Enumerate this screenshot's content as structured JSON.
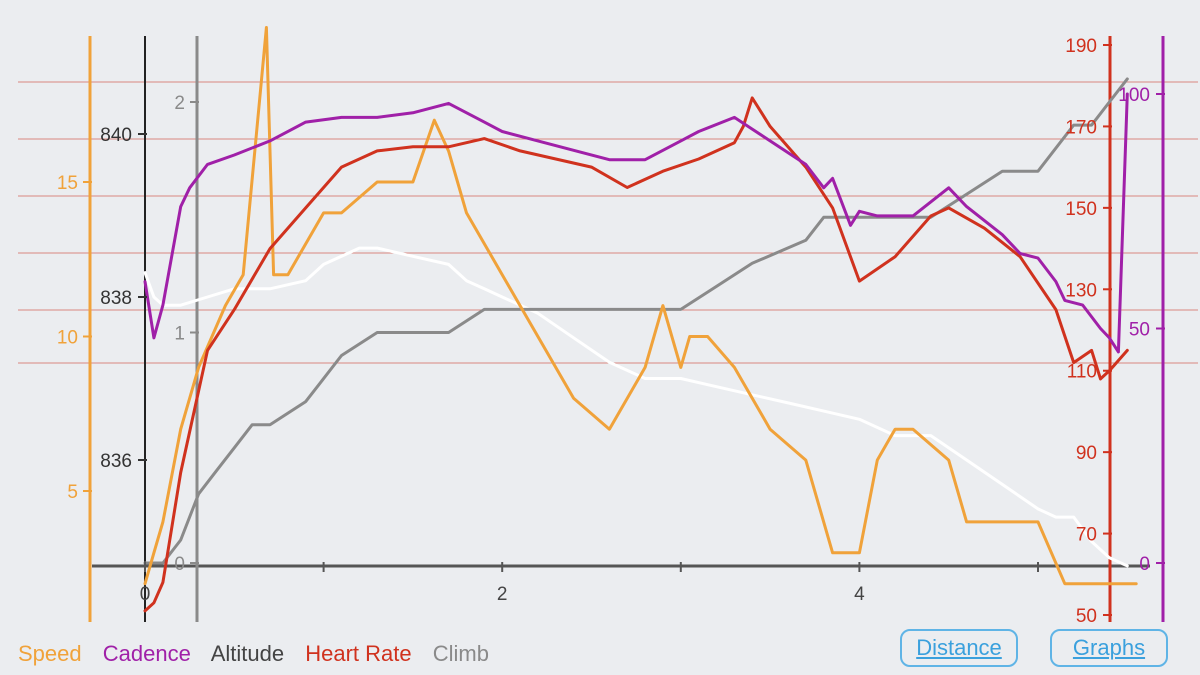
{
  "legend": {
    "speed": "Speed",
    "cadence": "Cadence",
    "altitude": "Altitude",
    "heart_rate": "Heart Rate",
    "climb": "Climb"
  },
  "buttons": {
    "distance": "Distance",
    "graphs": "Graphs"
  },
  "colors": {
    "speed": "#f0a23a",
    "cadence": "#a020a8",
    "altitude": "#444444",
    "heart_rate": "#d0321e",
    "climb": "#8a8a8a",
    "altitude_line": "#ffffff",
    "gridline": "#d98880",
    "axis": "#555555",
    "background": "#ebedf0",
    "button": "#3aa0dd"
  },
  "chart_data": {
    "type": "line",
    "x_axis": {
      "label": "",
      "ticks": [
        "0",
        "2",
        "4"
      ],
      "range": [
        0,
        5.5
      ]
    },
    "axes": {
      "speed": {
        "ticks": [
          "5",
          "10",
          "15"
        ],
        "range": [
          1.7,
          20
        ]
      },
      "altitude": {
        "ticks": [
          "836",
          "838",
          "840"
        ],
        "range": [
          834.7,
          841.3
        ]
      },
      "climb": {
        "ticks": [
          "0",
          "1",
          "2"
        ],
        "range": [
          0,
          2
        ]
      },
      "heart_rate": {
        "ticks": [
          "50",
          "70",
          "90",
          "110",
          "130",
          "150",
          "170",
          "190"
        ],
        "range": [
          50,
          195
        ]
      },
      "cadence": {
        "ticks": [
          "0",
          "50",
          "100"
        ],
        "range": [
          0,
          110
        ]
      }
    },
    "grid": true,
    "series": [
      {
        "name": "Altitude",
        "x": [
          0,
          0.05,
          0.1,
          0.2,
          0.35,
          0.5,
          0.7,
          0.9,
          1.0,
          1.1,
          1.2,
          1.3,
          1.5,
          1.7,
          1.8,
          1.9,
          2.0,
          2.2,
          2.4,
          2.6,
          2.8,
          3.0,
          3.2,
          3.4,
          3.6,
          3.8,
          4.0,
          4.2,
          4.4,
          4.6,
          4.8,
          5.0,
          5.1,
          5.2,
          5.3,
          5.4,
          5.5
        ],
        "y": [
          838.3,
          838.0,
          837.9,
          837.9,
          838.0,
          838.1,
          838.1,
          838.2,
          838.4,
          838.5,
          838.6,
          838.6,
          838.5,
          838.4,
          838.2,
          838.1,
          838.0,
          837.8,
          837.5,
          837.2,
          837.0,
          837.0,
          836.9,
          836.8,
          836.7,
          836.6,
          836.5,
          836.3,
          836.3,
          836.0,
          835.7,
          835.4,
          835.3,
          835.3,
          835.0,
          834.8,
          834.7
        ]
      },
      {
        "name": "Climb",
        "x": [
          0,
          0.1,
          0.2,
          0.3,
          0.4,
          0.5,
          0.6,
          0.7,
          0.9,
          1.0,
          1.1,
          1.3,
          1.5,
          1.7,
          1.9,
          2.0,
          2.4,
          2.8,
          3.0,
          3.2,
          3.4,
          3.7,
          3.8,
          4.0,
          4.4,
          4.6,
          4.8,
          5.0,
          5.1,
          5.2,
          5.3,
          5.4,
          5.5
        ],
        "y": [
          0,
          0,
          0.1,
          0.3,
          0.4,
          0.5,
          0.6,
          0.6,
          0.7,
          0.8,
          0.9,
          1.0,
          1.0,
          1.0,
          1.1,
          1.1,
          1.1,
          1.1,
          1.1,
          1.2,
          1.3,
          1.4,
          1.5,
          1.5,
          1.5,
          1.6,
          1.7,
          1.7,
          1.8,
          1.9,
          1.9,
          2.0,
          2.1
        ]
      },
      {
        "name": "Speed",
        "x": [
          0,
          0.05,
          0.1,
          0.2,
          0.3,
          0.45,
          0.55,
          0.68,
          0.72,
          0.8,
          1.0,
          1.1,
          1.3,
          1.5,
          1.62,
          1.7,
          1.8,
          2.0,
          2.2,
          2.4,
          2.6,
          2.8,
          2.9,
          3.0,
          3.05,
          3.15,
          3.3,
          3.5,
          3.7,
          3.85,
          3.95,
          4.0,
          4.1,
          4.2,
          4.3,
          4.5,
          4.6,
          4.8,
          5.0,
          5.15,
          5.25,
          5.35,
          5.45,
          5.55
        ],
        "y": [
          2,
          3,
          4,
          7,
          9,
          11,
          12,
          20,
          12,
          12,
          14,
          14,
          15,
          15,
          17,
          16,
          14,
          12,
          10,
          8,
          7,
          9,
          11,
          9,
          10,
          10,
          9,
          7,
          6,
          3,
          3,
          3,
          6,
          7,
          7,
          6,
          4,
          4,
          4,
          2,
          2,
          2,
          2,
          2
        ]
      },
      {
        "name": "Heart Rate",
        "x": [
          0,
          0.05,
          0.1,
          0.2,
          0.35,
          0.5,
          0.7,
          0.9,
          1.1,
          1.3,
          1.5,
          1.7,
          1.9,
          2.1,
          2.3,
          2.5,
          2.7,
          2.9,
          3.1,
          3.3,
          3.35,
          3.4,
          3.5,
          3.7,
          3.85,
          4.0,
          4.2,
          4.4,
          4.5,
          4.7,
          4.9,
          5.1,
          5.2,
          5.3,
          5.35,
          5.4,
          5.5
        ],
        "y": [
          51,
          53,
          58,
          85,
          115,
          125,
          140,
          150,
          160,
          164,
          165,
          165,
          167,
          164,
          162,
          160,
          155,
          159,
          162,
          166,
          170,
          177,
          170,
          160,
          150,
          132,
          138,
          148,
          150,
          145,
          138,
          125,
          112,
          115,
          108,
          110,
          115
        ]
      },
      {
        "name": "Cadence",
        "x": [
          0,
          0.05,
          0.1,
          0.2,
          0.25,
          0.35,
          0.5,
          0.7,
          0.9,
          1.1,
          1.3,
          1.5,
          1.7,
          1.9,
          2.0,
          2.2,
          2.4,
          2.6,
          2.8,
          3.0,
          3.1,
          3.3,
          3.5,
          3.7,
          3.8,
          3.85,
          3.95,
          4.0,
          4.1,
          4.3,
          4.5,
          4.6,
          4.8,
          4.9,
          5.0,
          5.1,
          5.15,
          5.25,
          5.35,
          5.4,
          5.45,
          5.5
        ],
        "y": [
          60,
          48,
          55,
          76,
          80,
          85,
          87,
          90,
          94,
          95,
          95,
          96,
          98,
          94,
          92,
          90,
          88,
          86,
          86,
          90,
          92,
          95,
          90,
          85,
          80,
          82,
          72,
          75,
          74,
          74,
          80,
          76,
          70,
          66,
          65,
          60,
          56,
          55,
          50,
          48,
          45,
          100
        ]
      }
    ]
  }
}
